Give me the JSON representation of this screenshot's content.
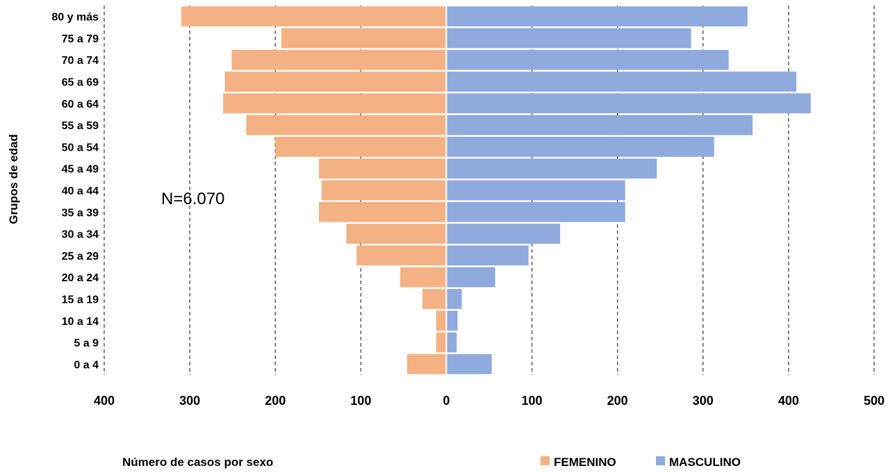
{
  "chart_data": {
    "type": "bar",
    "orientation": "horizontal",
    "layout": "population-pyramid",
    "categories": [
      "80 y más",
      "75 a 79",
      "70 a 74",
      "65 a 69",
      "60 a 64",
      "55 a 59",
      "50 a 54",
      "45 a 49",
      "40 a 44",
      "35 a 39",
      "30 a 34",
      "25 a 29",
      "20 a 24",
      "15 a 19",
      "10 a 14",
      "5 a 9",
      "0 a 4"
    ],
    "series": [
      {
        "name": "FEMENINO",
        "color": "#F4B183",
        "values": [
          310,
          193,
          251,
          259,
          261,
          234,
          200,
          149,
          146,
          149,
          117,
          105,
          54,
          28,
          12,
          12,
          46
        ]
      },
      {
        "name": "MASCULINO",
        "color": "#8FAADC",
        "values": [
          352,
          286,
          330,
          409,
          426,
          358,
          313,
          246,
          209,
          209,
          133,
          96,
          57,
          18,
          13,
          12,
          53
        ]
      }
    ],
    "xlim": [
      -400,
      500
    ],
    "ticks": [
      -400,
      -300,
      -200,
      -100,
      0,
      100,
      200,
      300,
      400,
      500
    ],
    "tick_labels": [
      "400",
      "300",
      "200",
      "100",
      "0",
      "100",
      "200",
      "300",
      "400",
      "500"
    ],
    "xlabel": "Número de casos por sexo",
    "ylabel": "Grupos de edad",
    "annotation": "N=6.070",
    "grid": "vertical dashed",
    "legend": {
      "position": "bottom-right",
      "items": [
        "FEMENINO",
        "MASCULINO"
      ]
    }
  }
}
